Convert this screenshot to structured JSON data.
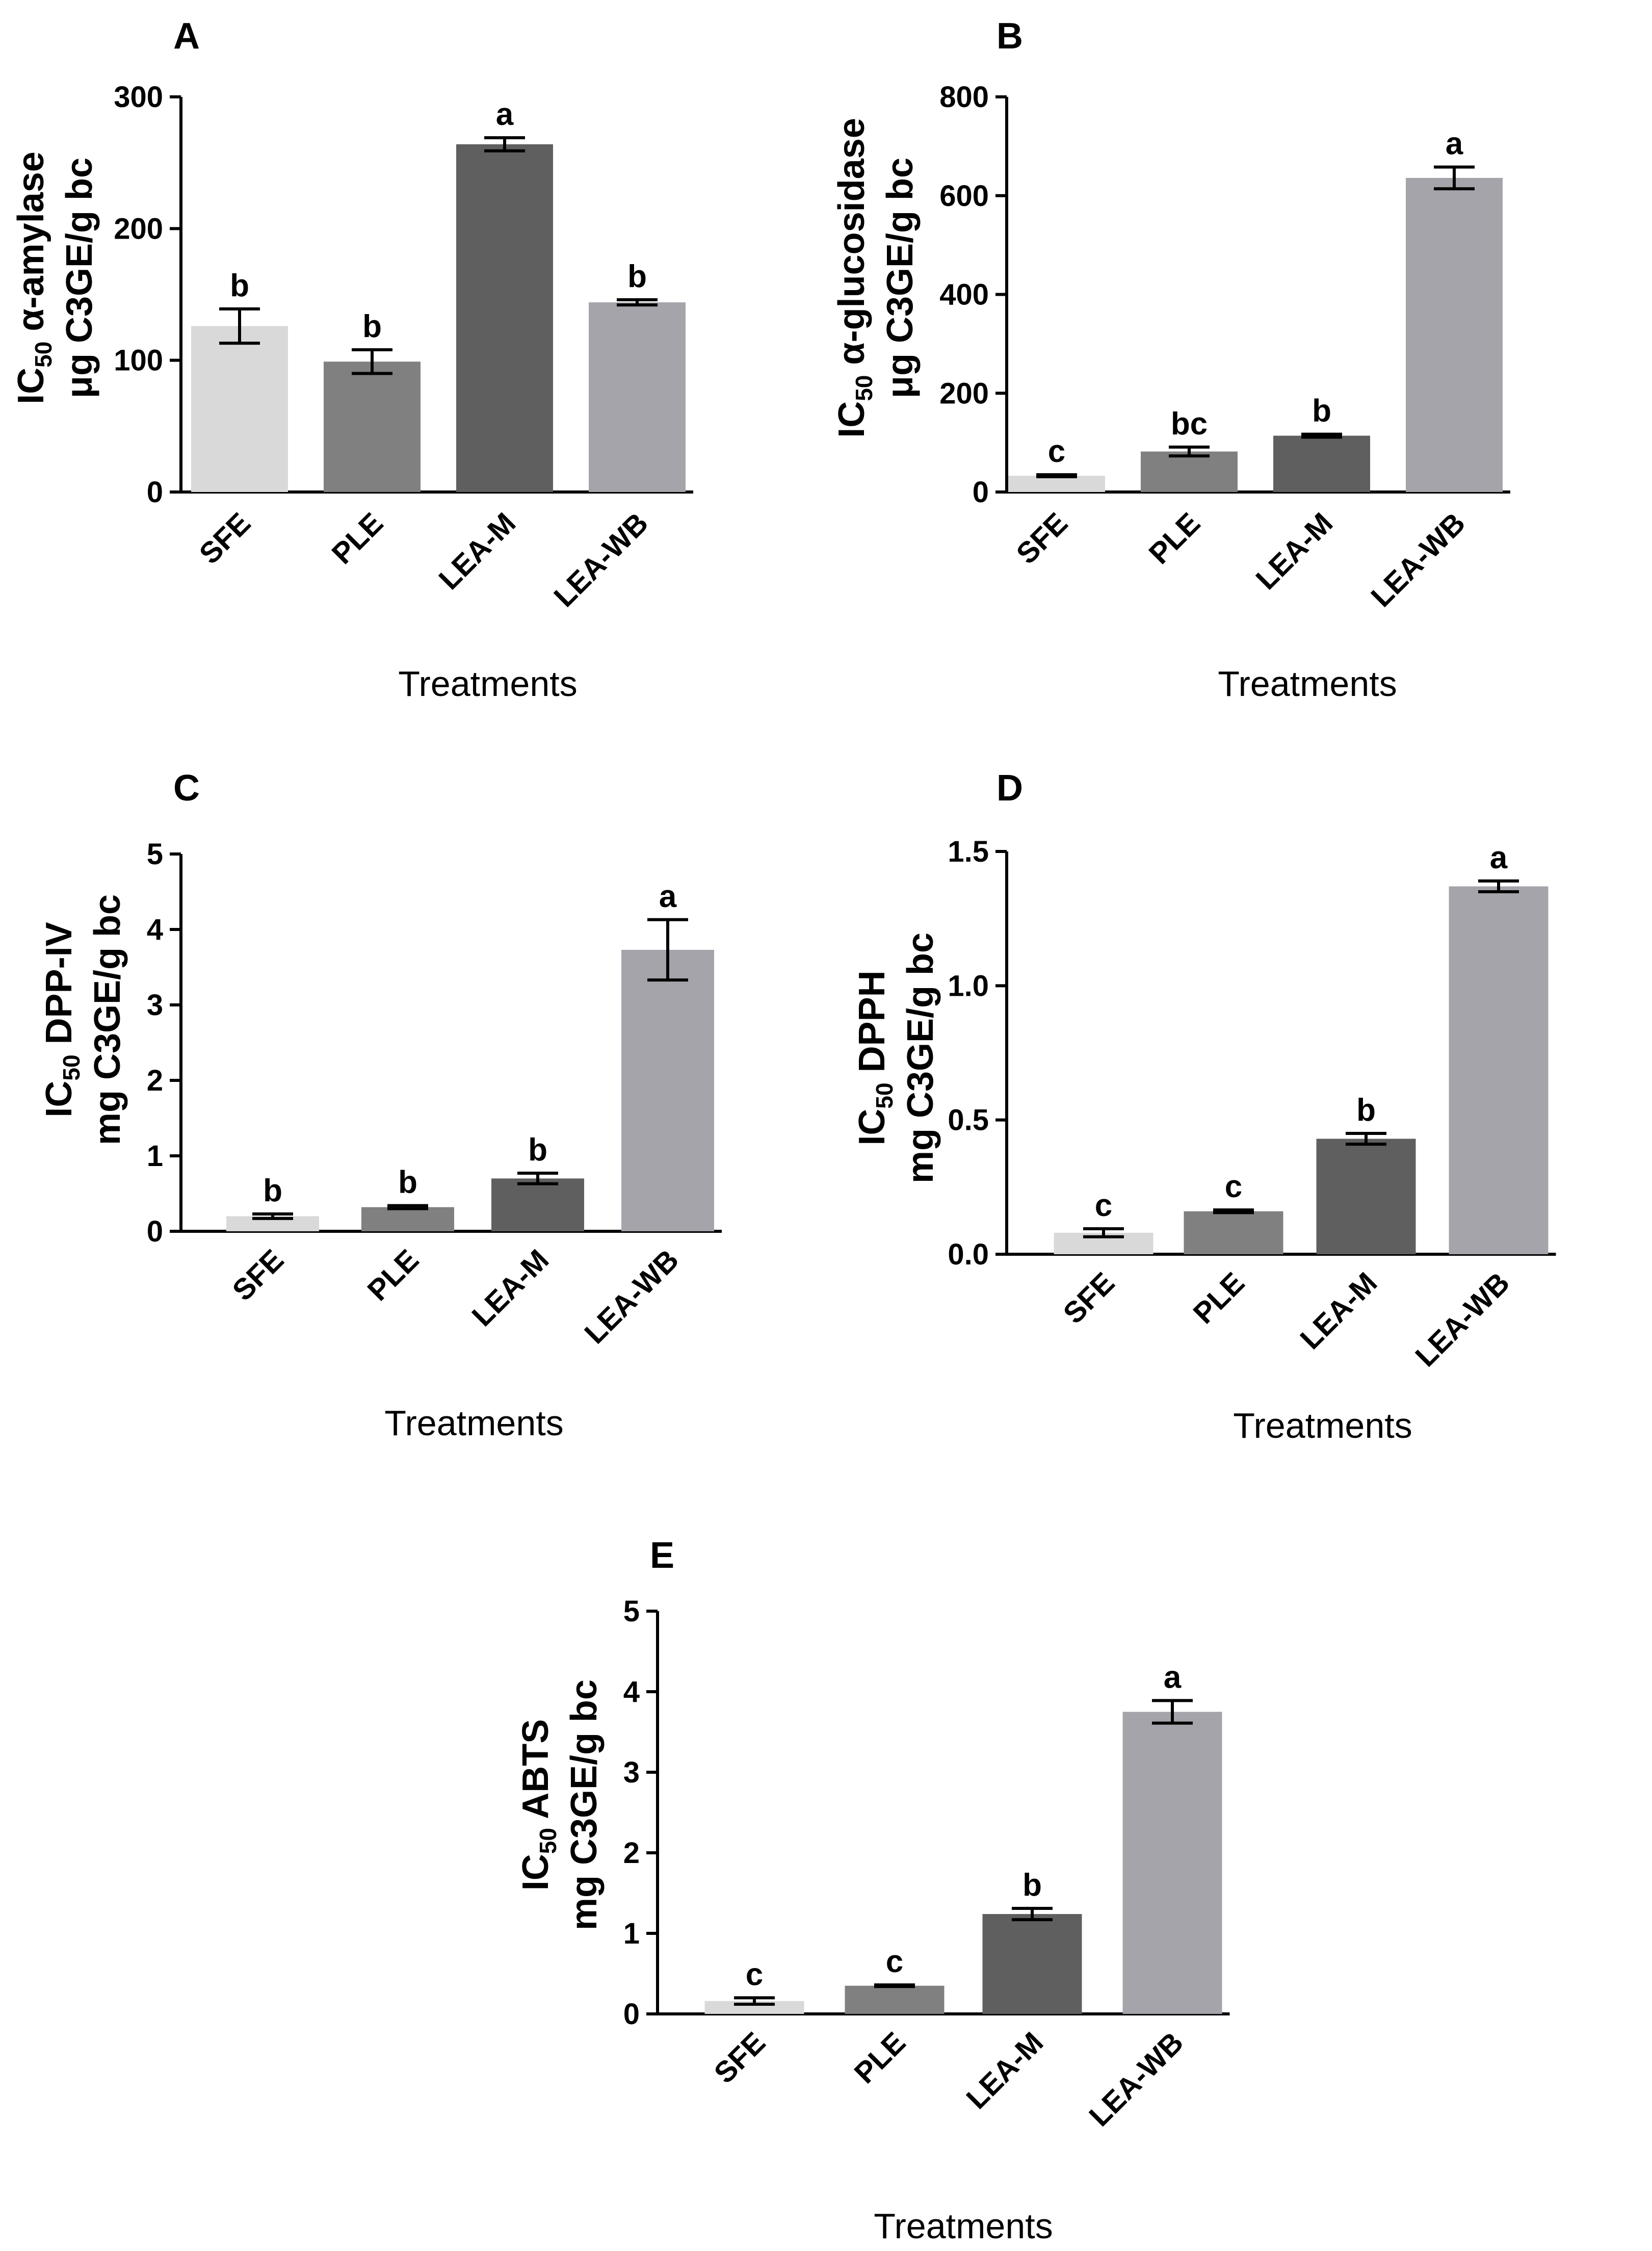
{
  "chart_data": [
    {
      "panel": "A",
      "type": "bar",
      "categories": [
        "SFE",
        "PLE",
        "LEA-M",
        "LEA-WB"
      ],
      "values": [
        126,
        99,
        264,
        144
      ],
      "errors": [
        13,
        9,
        5,
        2
      ],
      "significance": [
        "b",
        "b",
        "a",
        "b"
      ],
      "colors": [
        "#d9d9d9",
        "#808080",
        "#5f5f5f",
        "#a5a4aa"
      ],
      "ylabel_line1_main": "IC",
      "ylabel_line1_sub": "50",
      "ylabel_line1_rest": " α-amylase",
      "ylabel_line2": "μg C3GE/g bc",
      "xlabel": "Treatments",
      "ylim": [
        0,
        300
      ],
      "yticks": [
        0,
        100,
        200,
        300
      ],
      "ytick_labels": [
        "0",
        "100",
        "200",
        "300"
      ]
    },
    {
      "panel": "B",
      "type": "bar",
      "categories": [
        "SFE",
        "PLE",
        "LEA-M",
        "LEA-WB"
      ],
      "values": [
        33,
        82,
        114,
        636
      ],
      "errors": [
        2,
        9,
        3,
        22
      ],
      "significance": [
        "c",
        "bc",
        "b",
        "a"
      ],
      "colors": [
        "#d9d9d9",
        "#808080",
        "#5f5f5f",
        "#a5a4aa"
      ],
      "ylabel_line1_main": "IC",
      "ylabel_line1_sub": "50",
      "ylabel_line1_rest": " α-glucosidase",
      "ylabel_line2": "μg C3GE/g bc",
      "xlabel": "Treatments",
      "ylim": [
        0,
        800
      ],
      "yticks": [
        0,
        200,
        400,
        600,
        800
      ],
      "ytick_labels": [
        "0",
        "200",
        "400",
        "600",
        "800"
      ]
    },
    {
      "panel": "C",
      "type": "bar",
      "categories": [
        "SFE",
        "PLE",
        "LEA-M",
        "LEA-WB"
      ],
      "values": [
        0.2,
        0.32,
        0.7,
        3.73
      ],
      "errors": [
        0.03,
        0.02,
        0.07,
        0.4
      ],
      "significance": [
        "b",
        "b",
        "b",
        "a"
      ],
      "colors": [
        "#d9d9d9",
        "#808080",
        "#5f5f5f",
        "#a5a4aa"
      ],
      "ylabel_line1_main": "IC",
      "ylabel_line1_sub": "50",
      "ylabel_line1_rest": " DPP-IV",
      "ylabel_line2": "mg C3GE/g bc",
      "xlabel": "Treatments",
      "ylim": [
        0,
        5
      ],
      "yticks": [
        0,
        1,
        2,
        3,
        4,
        5
      ],
      "ytick_labels": [
        "0",
        "1",
        "2",
        "3",
        "4",
        "5"
      ]
    },
    {
      "panel": "D",
      "type": "bar",
      "categories": [
        "SFE",
        "PLE",
        "LEA-M",
        "LEA-WB"
      ],
      "values": [
        0.08,
        0.16,
        0.43,
        1.37
      ],
      "errors": [
        0.015,
        0.005,
        0.02,
        0.02
      ],
      "significance": [
        "c",
        "c",
        "b",
        "a"
      ],
      "colors": [
        "#d9d9d9",
        "#808080",
        "#5f5f5f",
        "#a5a4aa"
      ],
      "ylabel_line1_main": "IC",
      "ylabel_line1_sub": "50",
      "ylabel_line1_rest": " DPPH",
      "ylabel_line2": "mg C3GE/g bc",
      "xlabel": "Treatments",
      "ylim": [
        0,
        1.5
      ],
      "yticks": [
        0,
        0.5,
        1.0,
        1.5
      ],
      "ytick_labels": [
        "0.0",
        "0.5",
        "1.0",
        "1.5"
      ]
    },
    {
      "panel": "E",
      "type": "bar",
      "categories": [
        "SFE",
        "PLE",
        "LEA-M",
        "LEA-WB"
      ],
      "values": [
        0.16,
        0.35,
        1.24,
        3.75
      ],
      "errors": [
        0.04,
        0.01,
        0.07,
        0.14
      ],
      "significance": [
        "c",
        "c",
        "b",
        "a"
      ],
      "colors": [
        "#d9d9d9",
        "#808080",
        "#5f5f5f",
        "#a5a4aa"
      ],
      "ylabel_line1_main": "IC",
      "ylabel_line1_sub": "50",
      "ylabel_line1_rest": " ABTS",
      "ylabel_line2": "mg C3GE/g bc",
      "xlabel": "Treatments",
      "ylim": [
        0,
        5
      ],
      "yticks": [
        0,
        1,
        2,
        3,
        4,
        5
      ],
      "ytick_labels": [
        "0",
        "1",
        "2",
        "3",
        "4",
        "5"
      ]
    }
  ]
}
